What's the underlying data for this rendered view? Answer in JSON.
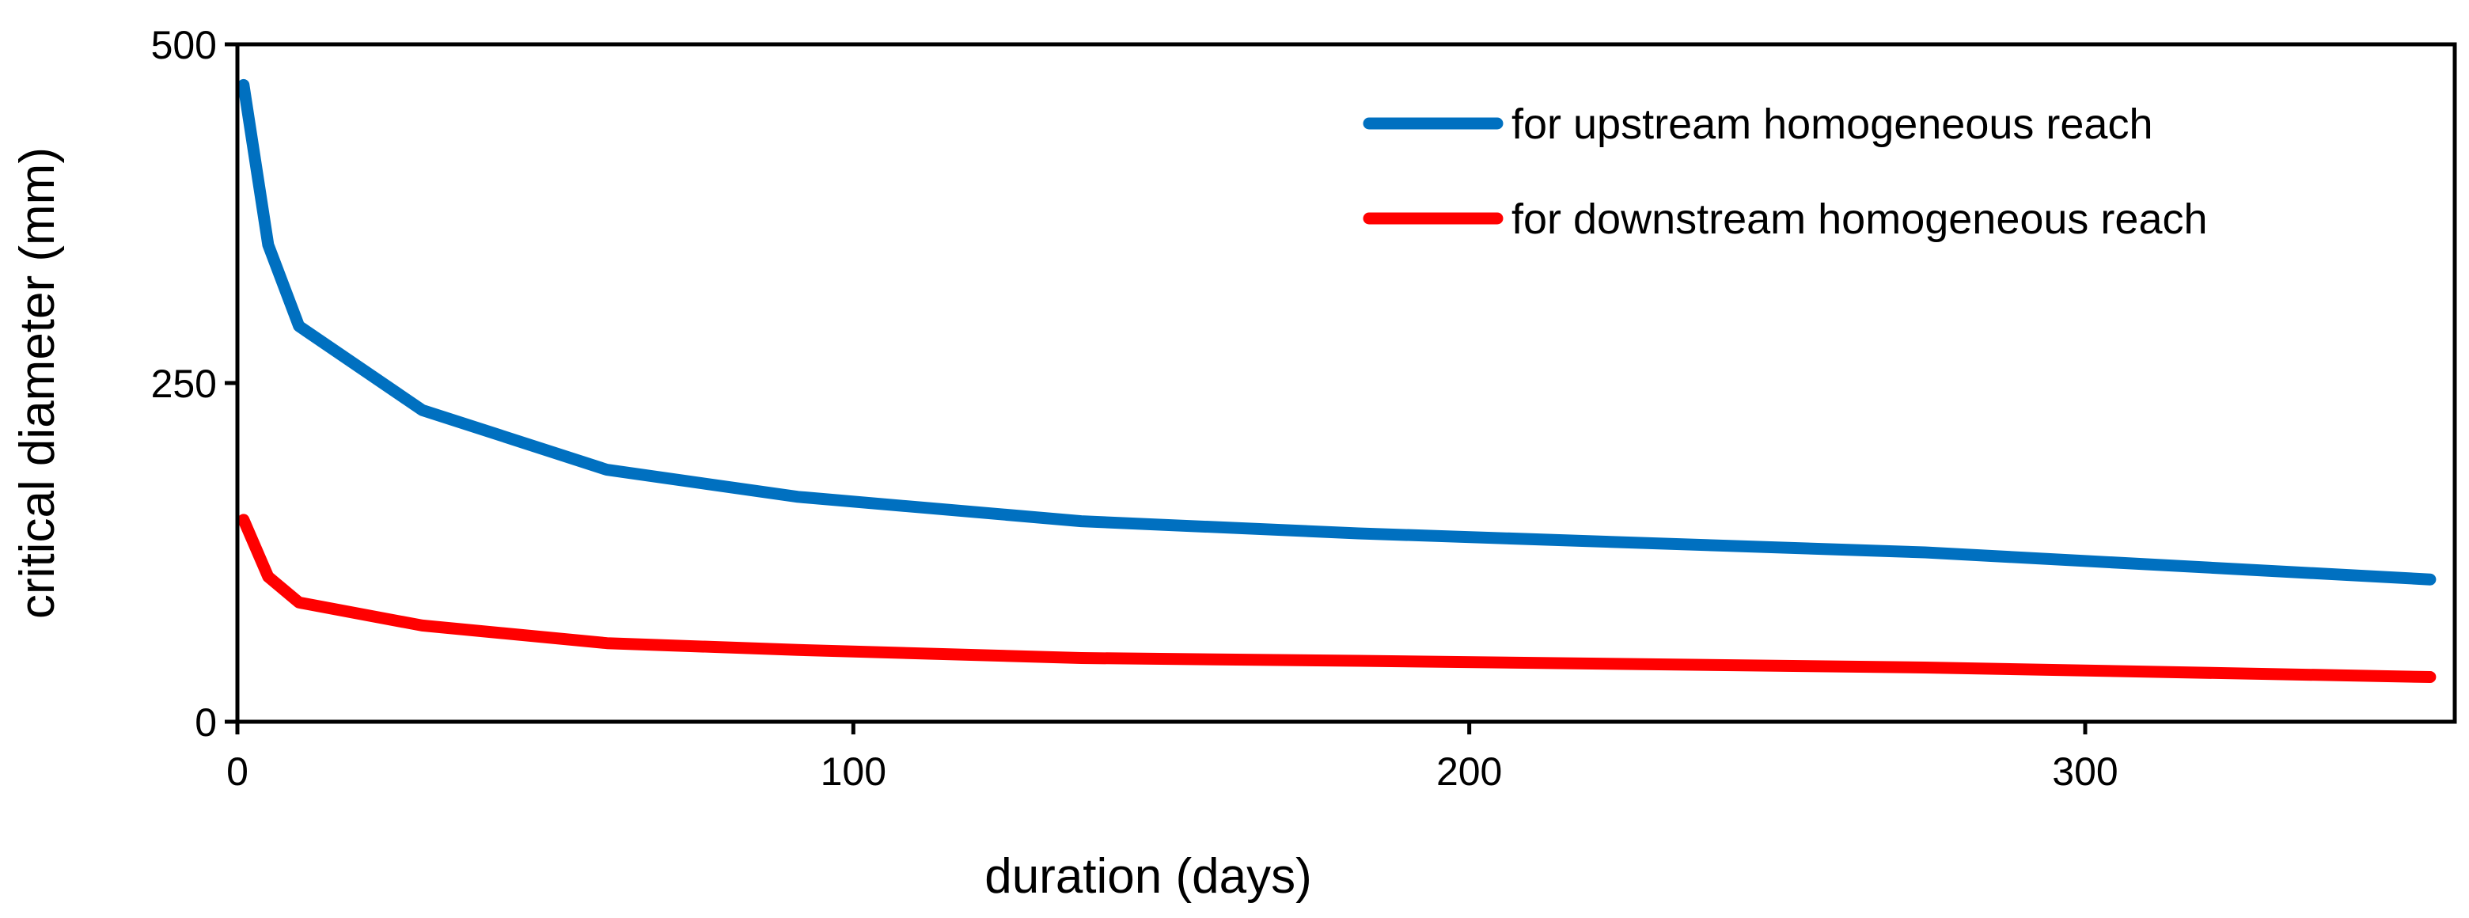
{
  "chart_data": {
    "type": "line",
    "title": "",
    "xlabel": "duration (days)",
    "ylabel": "critical diameter (mm)",
    "xlim": [
      0,
      360
    ],
    "ylim": [
      0,
      500
    ],
    "xticks": [
      0,
      100,
      200,
      300
    ],
    "yticks": [
      0,
      250,
      500
    ],
    "xtick_labels": [
      "0",
      "100",
      "200",
      "300"
    ],
    "ytick_labels": [
      "0",
      "250",
      "500"
    ],
    "grid": false,
    "legend_position": "top-right",
    "series": [
      {
        "name": "for upstream homogeneous reach",
        "color": "#0070C0",
        "x": [
          1,
          5,
          10,
          30,
          60,
          91,
          137,
          182,
          274,
          356
        ],
        "y": [
          470,
          352,
          292,
          230,
          186,
          166,
          148,
          139,
          125,
          105
        ]
      },
      {
        "name": "for downstream homogeneous reach",
        "color": "#FF0000",
        "x": [
          1,
          5,
          10,
          30,
          60,
          91,
          137,
          182,
          274,
          356
        ],
        "y": [
          149,
          107,
          88,
          71,
          58,
          53,
          47,
          45,
          40,
          33
        ]
      }
    ]
  }
}
